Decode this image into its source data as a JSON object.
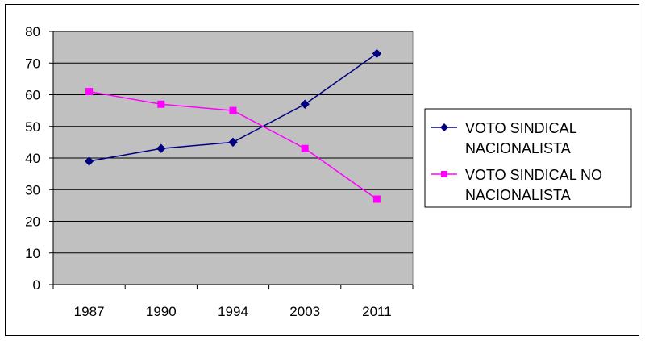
{
  "chart_data": {
    "type": "line",
    "categories": [
      "1987",
      "1990",
      "1994",
      "2003",
      "2011"
    ],
    "ylim": [
      0,
      80
    ],
    "yticks": [
      0,
      10,
      20,
      30,
      40,
      50,
      60,
      70,
      80
    ],
    "grid": "horizontal",
    "plot_background": "#c0c0c0",
    "legend_position": "right",
    "series": [
      {
        "name": "VOTO SINDICAL NACIONALISTA",
        "legend_lines": [
          "VOTO SINDICAL",
          "NACIONALISTA"
        ],
        "values": [
          39,
          43,
          45,
          57,
          73
        ],
        "color": "#000080",
        "marker": "diamond"
      },
      {
        "name": "VOTO SINDICAL NO NACIONALISTA",
        "legend_lines": [
          "VOTO SINDICAL NO",
          "NACIONALISTA"
        ],
        "values": [
          61,
          57,
          55,
          43,
          27
        ],
        "color": "#ff00ff",
        "marker": "square"
      }
    ]
  }
}
